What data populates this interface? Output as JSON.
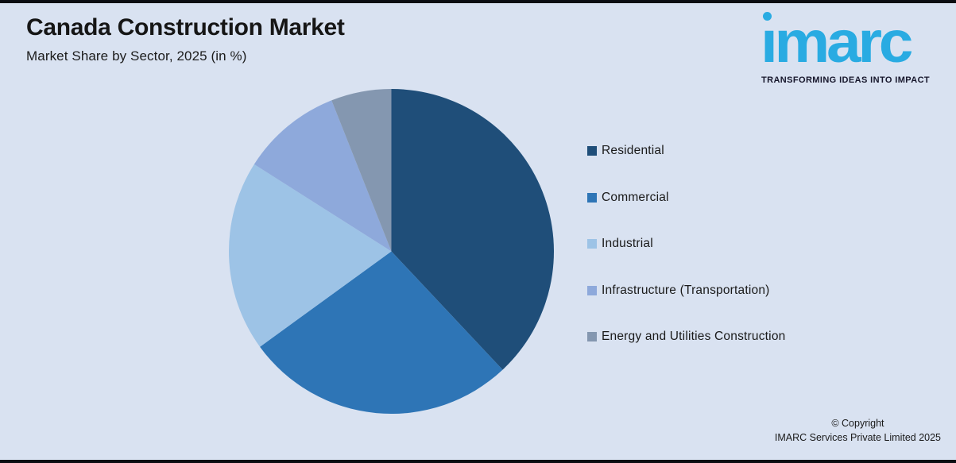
{
  "background_color": "#D9E2F1",
  "header": {
    "title": "Canada Construction Market",
    "subtitle": "Market Share by Sector, 2025 (in %)"
  },
  "logo": {
    "wordmark": "ımarc",
    "tagline": "TRANSFORMING IDEAS INTO IMPACT",
    "brand_color": "#29ABE2",
    "tagline_color": "#16162B"
  },
  "chart_data": {
    "type": "pie",
    "title": "Canada Construction Market",
    "subtitle": "Market Share by Sector, 2025 (in %)",
    "unit": "%",
    "categories": [
      "Residential",
      "Commercial",
      "Industrial",
      "Infrastructure (Transportation)",
      "Energy and Utilities Construction"
    ],
    "values": [
      38,
      27,
      19,
      10,
      6
    ],
    "colors": [
      "#1F4E79",
      "#2E75B6",
      "#9DC3E6",
      "#8EA9DB",
      "#8497B0"
    ],
    "start_angle_deg": 0,
    "direction": "clockwise",
    "legend_position": "right",
    "data_labels": false
  },
  "footer": {
    "line1": "© Copyright",
    "line2": "IMARC Services Private Limited 2025"
  }
}
